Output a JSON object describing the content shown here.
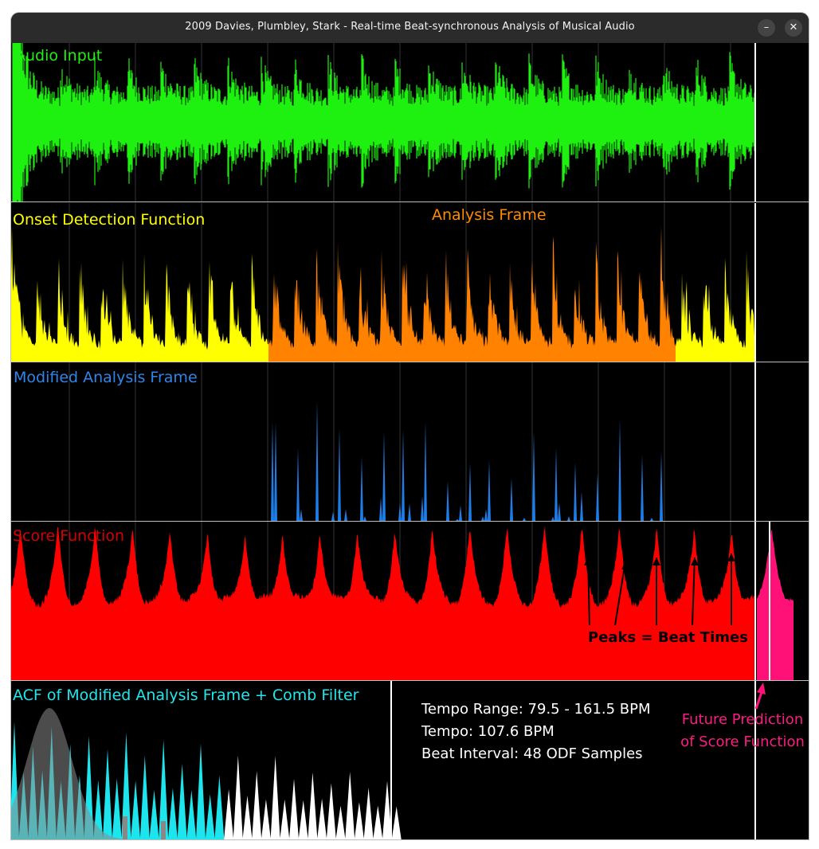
{
  "window": {
    "title": "2009 Davies, Plumbley, Stark - Real-time Beat-synchronous Analysis of Musical Audio",
    "minimize_label": "–",
    "close_label": "✕"
  },
  "colors": {
    "audio": "#1ef010",
    "onset": "#ffff00",
    "analysis_frame": "#ff8200",
    "modified_frame": "#1f7de6",
    "score": "#ff0000",
    "prediction": "#ff1177",
    "acf_low": "#1de5ee",
    "acf_high": "#ffffff",
    "comb_filter": "#8a8a8a"
  },
  "panels": {
    "audio_input": {
      "label": "Audio Input"
    },
    "onset": {
      "label": "Onset Detection Function",
      "frame_label": "Analysis Frame"
    },
    "modified": {
      "label": "Modified Analysis Frame"
    },
    "score": {
      "label": "Score Function",
      "annotation": "Peaks = Beat Times"
    },
    "acf": {
      "label": "ACF of Modified Analysis Frame + Comb Filter"
    }
  },
  "stats": {
    "tempo_range": "Tempo Range: 79.5 - 161.5 BPM",
    "tempo": "Tempo: 107.6 BPM",
    "beat_interval": "Beat Interval: 48 ODF Samples"
  },
  "future_prediction": {
    "line1": "Future Prediction",
    "line2": "of Score Function"
  }
}
